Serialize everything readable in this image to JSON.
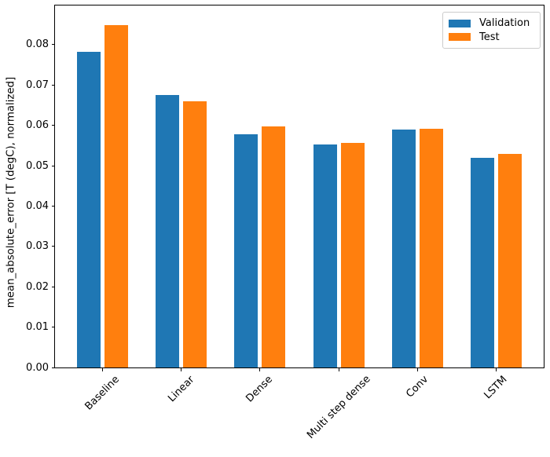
{
  "chart_data": {
    "type": "bar",
    "title": "",
    "xlabel": "",
    "ylabel": "mean_absolute_error [T (degC), normalized]",
    "categories": [
      "Baseline",
      "Linear",
      "Dense",
      "Multi step dense",
      "Conv",
      "LSTM"
    ],
    "series": [
      {
        "name": "Validation",
        "color": "#1f77b4",
        "offset": -0.175,
        "values": [
          0.0782,
          0.0675,
          0.0578,
          0.0552,
          0.059,
          0.0519
        ]
      },
      {
        "name": "Test",
        "color": "#ff7f0e",
        "offset": 0.175,
        "values": [
          0.0849,
          0.0659,
          0.0598,
          0.0557,
          0.0591,
          0.0529
        ]
      }
    ],
    "bar_width": 0.3,
    "ytick_labels": [
      "0.00",
      "0.01",
      "0.02",
      "0.03",
      "0.04",
      "0.05",
      "0.06",
      "0.07",
      "0.08"
    ],
    "ytick_values": [
      0,
      0.01,
      0.02,
      0.03,
      0.04,
      0.05,
      0.06,
      0.07,
      0.08
    ],
    "ylim": [
      0,
      0.0897
    ],
    "xlim": [
      -0.602,
      5.602
    ],
    "xtick_rotation": 45,
    "grid": false,
    "legend": {
      "position": "upper right",
      "entries": [
        "Validation",
        "Test"
      ]
    },
    "colors": {
      "validation": "#1f77b4",
      "test": "#ff7f0e",
      "spine": "#000000",
      "legend_border": "#cccccc",
      "background": "#ffffff"
    }
  }
}
